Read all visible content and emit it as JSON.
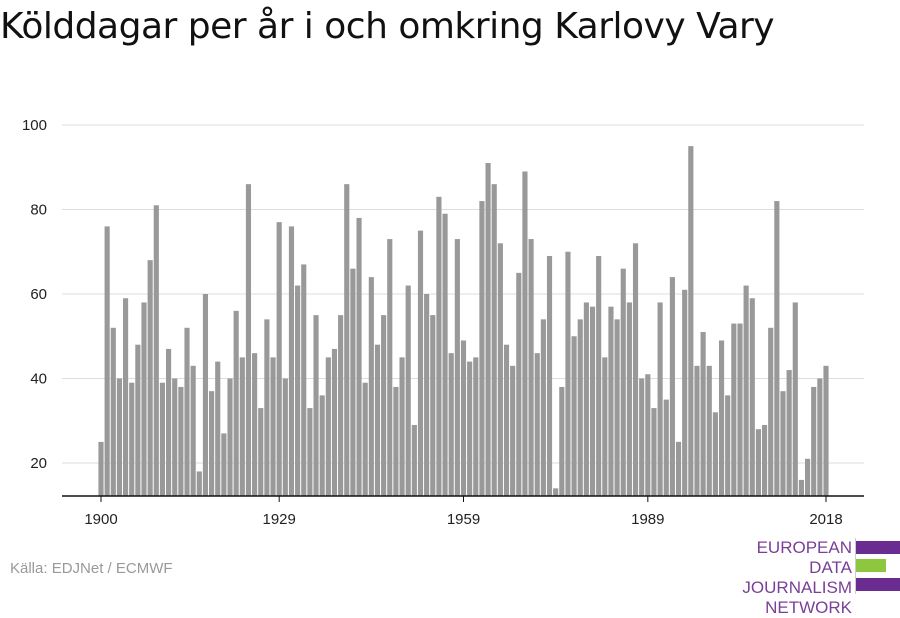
{
  "title": "Kölddagar per år i och omkring Karlovy Vary",
  "source": "Källa: EDJNet / ECMWF",
  "logo": {
    "lines": [
      "EUROPEAN",
      "DATA JOURNALISM",
      "NETWORK"
    ],
    "text_color": "#7b3f98",
    "bar_colors": [
      "#6a2c91",
      "#8dc63f",
      "#6a2c91"
    ]
  },
  "colors": {
    "bar": "#999999",
    "grid": "#dddddd",
    "axis": "#111111",
    "tick_text": "#222222"
  },
  "chart_data": {
    "type": "bar",
    "title": "Kölddagar per år i och omkring Karlovy Vary",
    "xlabel": "",
    "ylabel": "",
    "x_ticks": [
      "1900",
      "1929",
      "1959",
      "1989",
      "2018"
    ],
    "y_ticks": [
      20,
      40,
      60,
      80,
      100
    ],
    "ylim": [
      12,
      100
    ],
    "xlim": [
      1900,
      2018
    ],
    "grid": true,
    "categories": [
      1900,
      1901,
      1902,
      1903,
      1904,
      1905,
      1906,
      1907,
      1908,
      1909,
      1910,
      1911,
      1912,
      1913,
      1914,
      1915,
      1916,
      1917,
      1918,
      1919,
      1920,
      1921,
      1922,
      1923,
      1924,
      1925,
      1926,
      1927,
      1928,
      1929,
      1930,
      1931,
      1932,
      1933,
      1934,
      1935,
      1936,
      1937,
      1938,
      1939,
      1940,
      1941,
      1942,
      1943,
      1944,
      1945,
      1946,
      1947,
      1948,
      1949,
      1950,
      1951,
      1952,
      1953,
      1954,
      1955,
      1956,
      1957,
      1958,
      1959,
      1960,
      1961,
      1962,
      1963,
      1964,
      1965,
      1966,
      1967,
      1968,
      1969,
      1970,
      1971,
      1972,
      1973,
      1974,
      1975,
      1976,
      1977,
      1978,
      1979,
      1980,
      1981,
      1982,
      1983,
      1984,
      1985,
      1986,
      1987,
      1988,
      1989,
      1990,
      1991,
      1992,
      1993,
      1994,
      1995,
      1996,
      1997,
      1998,
      1999,
      2000,
      2001,
      2002,
      2003,
      2004,
      2005,
      2006,
      2007,
      2008,
      2009,
      2010,
      2011,
      2012,
      2013,
      2014,
      2015,
      2016,
      2017,
      2018
    ],
    "values": [
      25,
      76,
      52,
      40,
      59,
      39,
      48,
      58,
      68,
      81,
      39,
      47,
      40,
      38,
      52,
      43,
      18,
      60,
      37,
      44,
      27,
      40,
      56,
      45,
      86,
      46,
      33,
      54,
      45,
      77,
      40,
      76,
      62,
      67,
      33,
      55,
      36,
      45,
      47,
      55,
      86,
      66,
      78,
      39,
      64,
      48,
      55,
      73,
      38,
      45,
      62,
      29,
      75,
      60,
      55,
      83,
      79,
      46,
      73,
      49,
      44,
      45,
      82,
      91,
      86,
      72,
      48,
      43,
      65,
      89,
      73,
      46,
      54,
      69,
      14,
      38,
      70,
      50,
      54,
      58,
      57,
      69,
      45,
      57,
      54,
      66,
      58,
      72,
      40,
      41,
      33,
      58,
      35,
      64,
      25,
      61,
      95,
      43,
      51,
      43,
      32,
      49,
      36,
      53,
      53,
      62,
      59,
      28,
      29,
      52,
      82,
      37,
      42,
      58,
      16,
      21,
      38,
      40,
      43
    ]
  }
}
